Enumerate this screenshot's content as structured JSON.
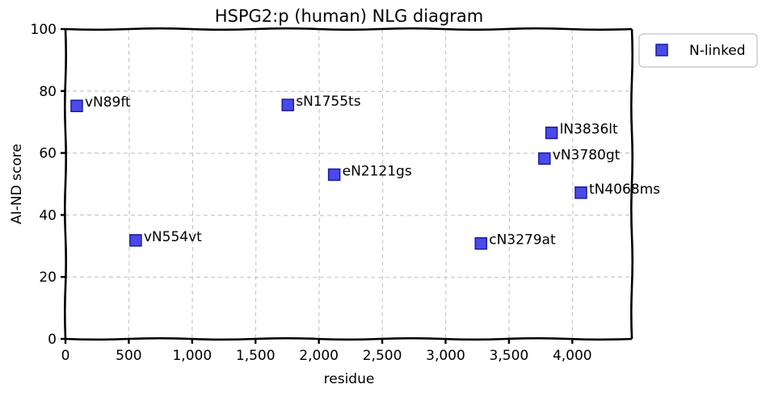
{
  "chart_data": {
    "type": "scatter",
    "title": "HSPG2:p (human) NLG diagram",
    "xlabel": "residue",
    "ylabel": "AI-ND score",
    "xlim": [
      0,
      4470
    ],
    "ylim": [
      0,
      100
    ],
    "x_ticks": [
      "0",
      "500",
      "1,000",
      "1,500",
      "2,000",
      "2,500",
      "3,000",
      "3,500",
      "4,000"
    ],
    "x_tick_values": [
      0,
      500,
      1000,
      1500,
      2000,
      2500,
      3000,
      3500,
      4000
    ],
    "y_ticks": [
      "0",
      "20",
      "40",
      "60",
      "80",
      "100"
    ],
    "y_tick_values": [
      0,
      20,
      40,
      60,
      80,
      100
    ],
    "grid": true,
    "legend": {
      "position": "outside-top-right",
      "entries": [
        "N-linked"
      ]
    },
    "marker_color": "#2a2ae6",
    "series": [
      {
        "name": "N-linked",
        "points": [
          {
            "x": 89,
            "y": 75.2,
            "label": "vN89ft"
          },
          {
            "x": 554,
            "y": 31.8,
            "label": "vN554vt"
          },
          {
            "x": 1755,
            "y": 75.5,
            "label": "sN1755ts"
          },
          {
            "x": 2121,
            "y": 53.0,
            "label": "eN2121gs"
          },
          {
            "x": 3279,
            "y": 30.8,
            "label": "cN3279at"
          },
          {
            "x": 3780,
            "y": 58.2,
            "label": "vN3780gt"
          },
          {
            "x": 3836,
            "y": 66.5,
            "label": "lN3836lt"
          },
          {
            "x": 4068,
            "y": 47.2,
            "label": "tN4068ms"
          }
        ]
      }
    ]
  }
}
